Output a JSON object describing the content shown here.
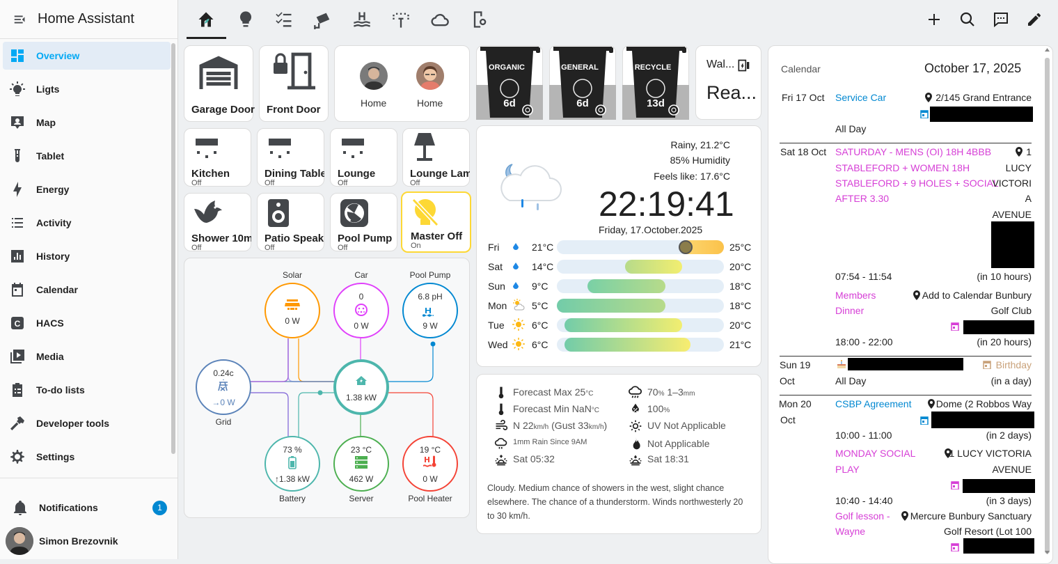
{
  "app": {
    "title": "Home Assistant"
  },
  "sidebar": {
    "items": [
      {
        "label": "Overview",
        "icon": "view-dashboard-icon",
        "active": true
      },
      {
        "label": "Ligts",
        "icon": "lightbulb-icon"
      },
      {
        "label": "Map",
        "icon": "map-account-icon"
      },
      {
        "label": "Tablet",
        "icon": "test-tube-icon"
      },
      {
        "label": "Energy",
        "icon": "lightning-bolt-icon"
      },
      {
        "label": "Activity",
        "icon": "format-list-bulleted-icon"
      },
      {
        "label": "History",
        "icon": "chart-box-icon"
      },
      {
        "label": "Calendar",
        "icon": "calendar-icon"
      },
      {
        "label": "HACS",
        "icon": "hacs-icon"
      },
      {
        "label": "Media",
        "icon": "play-box-multiple-icon"
      },
      {
        "label": "To-do lists",
        "icon": "clipboard-list-icon"
      },
      {
        "label": "Developer tools",
        "icon": "hammer-icon"
      },
      {
        "label": "Settings",
        "icon": "cog-icon"
      }
    ],
    "notifications": {
      "label": "Notifications",
      "count": "1"
    },
    "user": {
      "name": "Simon Brezovnik"
    }
  },
  "topbar": {
    "tabs": [
      "home-icon",
      "lightbulb-icon",
      "checklist-icon",
      "cctv-icon",
      "pool-icon",
      "sprinkler-icon",
      "cloud-icon",
      "tablet-cellphone-icon"
    ],
    "actions": [
      "plus-icon",
      "search-icon",
      "assist-icon",
      "pencil-icon"
    ]
  },
  "buttons": {
    "garage": "Garage Door",
    "front": "Front Door",
    "person1": "Home",
    "person2": "Home"
  },
  "bins": [
    {
      "label": "ORGANIC",
      "days": "6d"
    },
    {
      "label": "GENERAL",
      "days": "6d"
    },
    {
      "label": "RECYCLE",
      "days": "13d"
    }
  ],
  "wallpanel": {
    "title": "Wal...",
    "state": "Rea..."
  },
  "lights": [
    {
      "name": "Kitchen",
      "state": "Off"
    },
    {
      "name": "Dining Table",
      "state": "Off"
    },
    {
      "name": "Lounge",
      "state": "Off"
    },
    {
      "name": "Lounge Lamp",
      "state": "Off"
    },
    {
      "name": "Shower 10m",
      "state": "Off"
    },
    {
      "name": "Patio Speak.",
      "state": "Off"
    },
    {
      "name": "Pool Pump",
      "state": "Off"
    },
    {
      "name": "Master Off",
      "state": "On"
    }
  ],
  "energy": {
    "solar": {
      "label": "Solar",
      "value": "0 W"
    },
    "car": {
      "label": "Car",
      "top": "0",
      "value": "0 W"
    },
    "pool_pump": {
      "label": "Pool Pump",
      "top": "6.8 pH",
      "value": "9 W"
    },
    "grid": {
      "label": "Grid",
      "top": "0.24c",
      "value": "→0 W"
    },
    "home": {
      "value": "1.38 kW"
    },
    "battery": {
      "label": "Battery",
      "top": "73 %",
      "value": "↑1.38 kW"
    },
    "server": {
      "label": "Server",
      "top": "23 °C",
      "value": "462 W"
    },
    "pool_heater": {
      "label": "Pool Heater",
      "top": "19 °C",
      "value": "0 W"
    }
  },
  "weather": {
    "condition": "Rainy, 21.2°C",
    "humidity": "85% Humidity",
    "feels_like": "Feels like: 17.6°C",
    "time": "22:19:41",
    "date": "Friday, 17.October.2025",
    "forecast": [
      {
        "day": "Fri",
        "icon": "rain-drop-icon",
        "low": "21°C",
        "high": "25°C"
      },
      {
        "day": "Sat",
        "icon": "rain-drop-icon",
        "low": "14°C",
        "high": "20°C"
      },
      {
        "day": "Sun",
        "icon": "rain-drop-icon",
        "low": "9°C",
        "high": "18°C"
      },
      {
        "day": "Mon",
        "icon": "partly-sunny-icon",
        "low": "5°C",
        "high": "18°C"
      },
      {
        "day": "Tue",
        "icon": "sunny-icon",
        "low": "6°C",
        "high": "20°C"
      },
      {
        "day": "Wed",
        "icon": "sunny-icon",
        "low": "6°C",
        "high": "21°C"
      }
    ]
  },
  "details": {
    "forecast_max": "Forecast Max 25",
    "forecast_max_unit": "°C",
    "forecast_min": "Forecast Min NaN",
    "forecast_min_unit": "°C",
    "rain_chance": "70",
    "rain_chance_unit": "%",
    "rain_range": " 1–3",
    "rain_range_unit": "mm",
    "wind": "N 22",
    "wind_unit": "km/h",
    "gust": " (Gust 33",
    "gust_unit": "km/h",
    "gust_close": ")",
    "humidity": "100",
    "humidity_unit": "%",
    "rain_since_9am": "1",
    "rain_since_9am_suffix": "mm Rain Since 9AM",
    "uv": "UV Not Applicable",
    "fire": "Not Applicable",
    "sunrise": "Sat 05:32",
    "sunset": "Sat 18:31",
    "summary": "Cloudy. Medium chance of showers in the west, slight chance elsewhere. The chance of a thunderstorm. Winds northwesterly 20 to 30 km/h."
  },
  "calendar": {
    "title": "Calendar",
    "date": "October 17, 2025",
    "days": [
      {
        "day": "Fri 17 Oct"
      },
      {
        "day": "Sat 18 Oct"
      },
      {
        "day": "Sun 19",
        "day2": "Oct"
      },
      {
        "day": "Mon 20",
        "day2": "Oct"
      }
    ],
    "events": {
      "service_car": "Service Car",
      "service_car_loc": "2/145 Grand Entrance",
      "all_day": "All Day",
      "sat_event_lines": [
        "SATURDAY - MENS (OI) 18H 4BBB",
        "STABLEFORD + WOMEN 18H",
        "STABLEFORD + 9 HOLES + SOCIAL",
        "AFTER 3.30"
      ],
      "sat_loc_lines": [
        "1",
        "LUCY",
        "VICTORI",
        "A",
        "AVENUE"
      ],
      "sat_time": "07:54 - 11:54",
      "sat_rel": "(in 10 hours)",
      "members_lines": [
        "Members",
        "Dinner"
      ],
      "members_loc_lines": [
        "Add to Calendar Bunbury",
        "Golf Club"
      ],
      "members_time": "18:00 - 22:00",
      "members_rel": "(in 20 hours)",
      "birthday": "Birthday",
      "sun_all_day": "All Day",
      "sun_rel": "(in a day)",
      "csbp": "CSBP Agreement",
      "csbp_loc": "Dome (2 Robbos Way",
      "csbp_time": "10:00 - 11:00",
      "csbp_rel": "(in 2 days)",
      "monday_lines": [
        "MONDAY SOCIAL",
        "PLAY"
      ],
      "monday_loc_lines": [
        "1 LUCY VICTORIA",
        "AVENUE"
      ],
      "monday_time": "10:40 - 14:40",
      "monday_rel": "(in 3 days)",
      "golf_lines": [
        "Golf lesson -",
        "Wayne"
      ],
      "golf_loc_lines": [
        "Mercure Bunbury Sanctuary",
        "Golf Resort (Lot 100"
      ]
    }
  },
  "colors": {
    "accent": "#03a9f4",
    "pink_event": "#d63fd6",
    "blue_event": "#0288d1",
    "solar": "#ff9800",
    "car": "#e040fb",
    "pool_pump": "#0288d1",
    "grid": "#5b83b9",
    "home": "#4db6ac",
    "battery": "#4db6ac",
    "server": "#4caf50",
    "pool_heater": "#f44336",
    "master_on_border": "#fdd835"
  }
}
